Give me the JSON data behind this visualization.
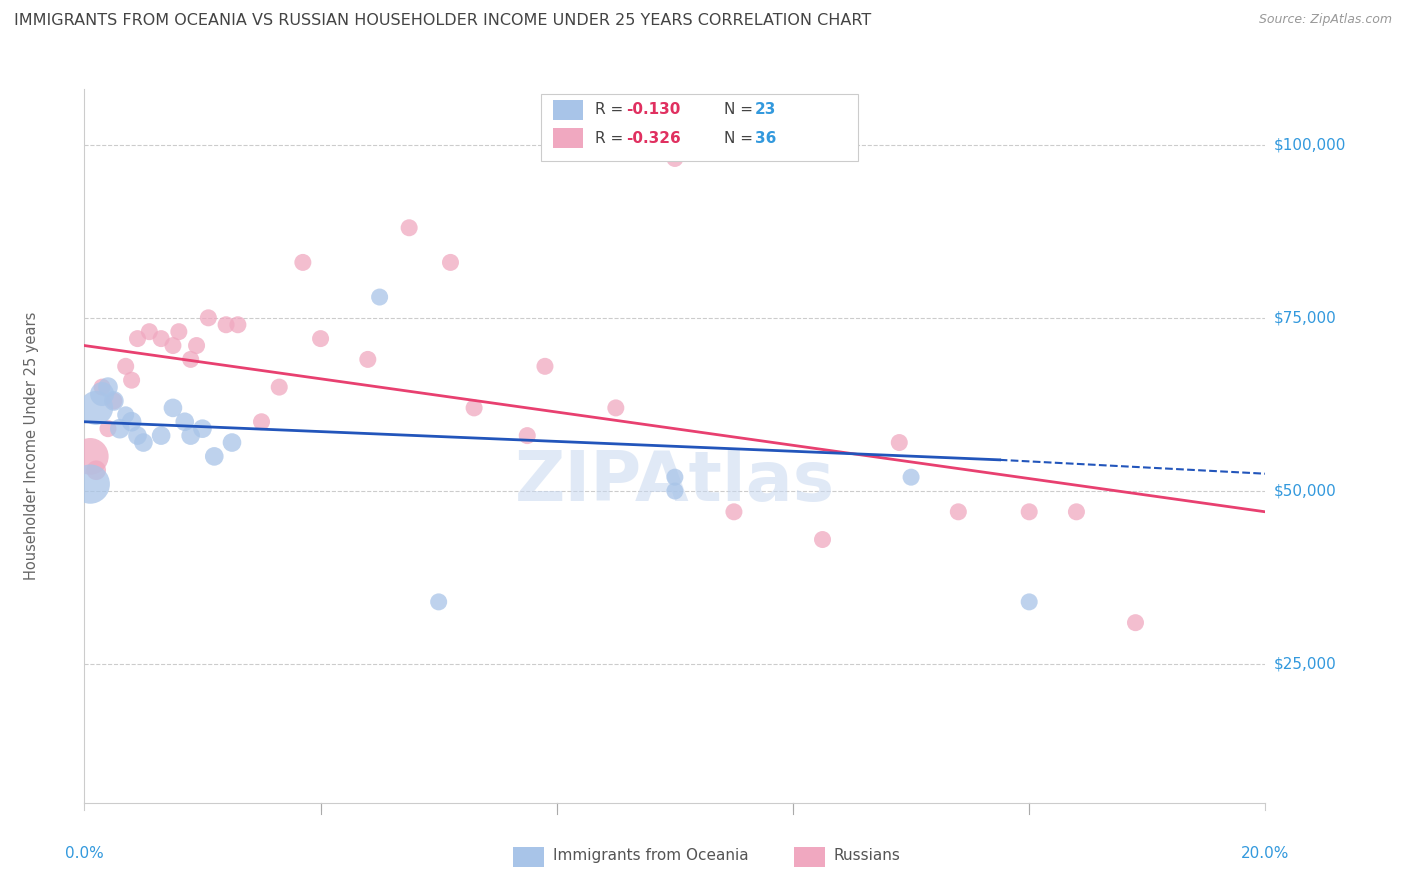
{
  "title": "IMMIGRANTS FROM OCEANIA VS RUSSIAN HOUSEHOLDER INCOME UNDER 25 YEARS CORRELATION CHART",
  "source": "Source: ZipAtlas.com",
  "ylabel": "Householder Income Under 25 years",
  "ytick_labels": [
    "$25,000",
    "$50,000",
    "$75,000",
    "$100,000"
  ],
  "ytick_values": [
    25000,
    50000,
    75000,
    100000
  ],
  "legend_blue_r": "-0.130",
  "legend_blue_n": "23",
  "legend_pink_r": "-0.326",
  "legend_pink_n": "36",
  "legend_label_blue": "Immigrants from Oceania",
  "legend_label_pink": "Russians",
  "xmin": 0.0,
  "xmax": 0.2,
  "ymin": 5000,
  "ymax": 108000,
  "blue_color": "#a8c4e8",
  "pink_color": "#f0a8c0",
  "line_blue_color": "#2255bb",
  "line_pink_color": "#e84070",
  "axis_label_color": "#3399dd",
  "title_color": "#444444",
  "watermark_color": "#c8d8f0",
  "background_color": "#ffffff",
  "blue_scatter_x": [
    0.001,
    0.002,
    0.003,
    0.004,
    0.005,
    0.006,
    0.007,
    0.008,
    0.009,
    0.01,
    0.013,
    0.015,
    0.017,
    0.018,
    0.02,
    0.022,
    0.025,
    0.05,
    0.06,
    0.1,
    0.1,
    0.14,
    0.16
  ],
  "blue_scatter_y": [
    51000,
    62000,
    64000,
    65000,
    63000,
    59000,
    61000,
    60000,
    58000,
    57000,
    58000,
    62000,
    60000,
    58000,
    59000,
    55000,
    57000,
    78000,
    34000,
    52000,
    50000,
    52000,
    34000
  ],
  "blue_scatter_size": [
    800,
    600,
    300,
    200,
    200,
    200,
    150,
    200,
    180,
    180,
    180,
    180,
    180,
    180,
    180,
    180,
    180,
    150,
    150,
    150,
    150,
    150,
    150
  ],
  "pink_scatter_x": [
    0.001,
    0.002,
    0.003,
    0.004,
    0.005,
    0.007,
    0.008,
    0.009,
    0.011,
    0.013,
    0.015,
    0.016,
    0.018,
    0.019,
    0.021,
    0.024,
    0.026,
    0.03,
    0.033,
    0.037,
    0.04,
    0.048,
    0.055,
    0.062,
    0.066,
    0.075,
    0.078,
    0.09,
    0.11,
    0.125,
    0.138,
    0.148,
    0.16,
    0.168,
    0.178,
    0.1
  ],
  "pink_scatter_y": [
    55000,
    53000,
    65000,
    59000,
    63000,
    68000,
    66000,
    72000,
    73000,
    72000,
    71000,
    73000,
    69000,
    71000,
    75000,
    74000,
    74000,
    60000,
    65000,
    83000,
    72000,
    69000,
    88000,
    83000,
    62000,
    58000,
    68000,
    62000,
    47000,
    43000,
    57000,
    47000,
    47000,
    47000,
    31000,
    98000
  ],
  "pink_scatter_size": [
    700,
    200,
    150,
    150,
    150,
    150,
    150,
    150,
    150,
    150,
    150,
    150,
    150,
    150,
    150,
    150,
    150,
    150,
    150,
    150,
    150,
    150,
    150,
    150,
    150,
    150,
    150,
    150,
    150,
    150,
    150,
    150,
    150,
    150,
    150,
    150
  ],
  "blue_line_x": [
    0.0,
    0.155
  ],
  "blue_line_y": [
    60000,
    54500
  ],
  "blue_dashed_line_x": [
    0.155,
    0.2
  ],
  "blue_dashed_line_y": [
    54500,
    52500
  ],
  "pink_line_x": [
    0.0,
    0.2
  ],
  "pink_line_y": [
    71000,
    47000
  ]
}
